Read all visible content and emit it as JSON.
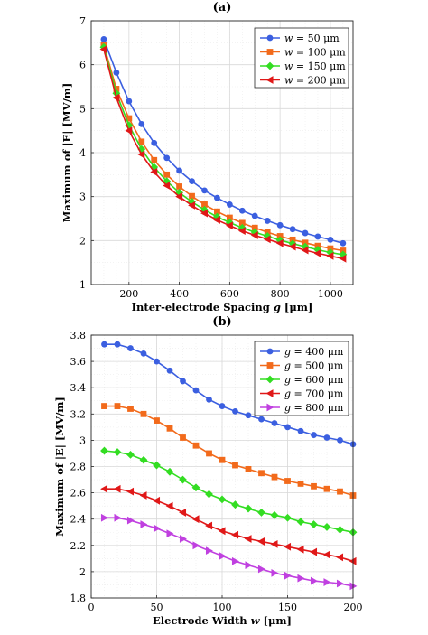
{
  "chart_data": [
    {
      "type": "line",
      "title": "(a)",
      "xlabel": "Inter-electrode Spacing g [μm]",
      "ylabel": "Maximum of |E| [MV/m]",
      "xlim": [
        50,
        1090
      ],
      "ylim": [
        1,
        7
      ],
      "xticks": [
        "200",
        "400",
        "600",
        "800",
        "1000"
      ],
      "yticks": [
        "1",
        "2",
        "3",
        "4",
        "5",
        "6",
        "7"
      ],
      "legend_position": "top-right",
      "x": [
        100,
        150,
        200,
        250,
        300,
        350,
        400,
        450,
        500,
        550,
        600,
        650,
        700,
        750,
        800,
        850,
        900,
        950,
        1000,
        1050
      ],
      "series": [
        {
          "name": "w = 50 μm",
          "color": "#3b5fe0",
          "marker": "circle",
          "values": [
            6.58,
            5.82,
            5.17,
            4.65,
            4.22,
            3.88,
            3.59,
            3.35,
            3.14,
            2.97,
            2.82,
            2.68,
            2.56,
            2.45,
            2.35,
            2.26,
            2.17,
            2.09,
            2.02,
            1.94
          ]
        },
        {
          "name": "w = 100 μm",
          "color": "#f26a1b",
          "marker": "square",
          "values": [
            6.45,
            5.45,
            4.78,
            4.25,
            3.83,
            3.5,
            3.23,
            3.01,
            2.82,
            2.66,
            2.52,
            2.4,
            2.29,
            2.19,
            2.1,
            2.02,
            1.95,
            1.88,
            1.82,
            1.77
          ]
        },
        {
          "name": "w = 150 μm",
          "color": "#33dd22",
          "marker": "diamond",
          "values": [
            6.4,
            5.35,
            4.62,
            4.08,
            3.67,
            3.35,
            3.09,
            2.88,
            2.7,
            2.54,
            2.41,
            2.29,
            2.19,
            2.1,
            2.01,
            1.93,
            1.86,
            1.79,
            1.73,
            1.68
          ]
        },
        {
          "name": "w = 200 μm",
          "color": "#e01818",
          "marker": "triangle-left",
          "values": [
            6.35,
            5.25,
            4.5,
            3.96,
            3.56,
            3.25,
            3.0,
            2.8,
            2.62,
            2.47,
            2.34,
            2.22,
            2.12,
            2.03,
            1.94,
            1.86,
            1.78,
            1.71,
            1.65,
            1.59
          ]
        }
      ]
    },
    {
      "type": "line",
      "title": "(b)",
      "xlabel": "Electrode Width w [μm]",
      "ylabel": "Maximum of |E| [MV/m]",
      "xlim": [
        0,
        200
      ],
      "ylim": [
        1.8,
        3.8
      ],
      "xticks": [
        "0",
        "50",
        "100",
        "150",
        "200"
      ],
      "yticks": [
        "1.8",
        "2",
        "2.2",
        "2.4",
        "2.6",
        "2.8",
        "3",
        "3.2",
        "3.4",
        "3.6",
        "3.8"
      ],
      "legend_position": "top-right",
      "x": [
        10,
        20,
        30,
        40,
        50,
        60,
        70,
        80,
        90,
        100,
        110,
        120,
        130,
        140,
        150,
        160,
        170,
        180,
        190,
        200
      ],
      "series": [
        {
          "name": "g = 400 μm",
          "color": "#3b5fe0",
          "marker": "circle",
          "values": [
            3.73,
            3.73,
            3.7,
            3.66,
            3.6,
            3.53,
            3.45,
            3.38,
            3.31,
            3.26,
            3.22,
            3.19,
            3.16,
            3.13,
            3.1,
            3.07,
            3.04,
            3.02,
            3.0,
            2.97
          ]
        },
        {
          "name": "g = 500 μm",
          "color": "#f26a1b",
          "marker": "square",
          "values": [
            3.26,
            3.26,
            3.24,
            3.2,
            3.15,
            3.09,
            3.02,
            2.96,
            2.9,
            2.85,
            2.81,
            2.78,
            2.75,
            2.72,
            2.69,
            2.67,
            2.65,
            2.63,
            2.61,
            2.58
          ]
        },
        {
          "name": "g = 600 μm",
          "color": "#33dd22",
          "marker": "diamond",
          "values": [
            2.92,
            2.91,
            2.89,
            2.85,
            2.81,
            2.76,
            2.7,
            2.64,
            2.59,
            2.55,
            2.51,
            2.48,
            2.45,
            2.43,
            2.41,
            2.38,
            2.36,
            2.34,
            2.32,
            2.3
          ]
        },
        {
          "name": "g = 700 μm",
          "color": "#e01818",
          "marker": "triangle-left",
          "values": [
            2.63,
            2.63,
            2.61,
            2.58,
            2.54,
            2.5,
            2.45,
            2.4,
            2.35,
            2.31,
            2.28,
            2.25,
            2.23,
            2.21,
            2.19,
            2.17,
            2.15,
            2.13,
            2.11,
            2.08
          ]
        },
        {
          "name": "g = 800 μm",
          "color": "#c040e0",
          "marker": "triangle-right",
          "values": [
            2.41,
            2.41,
            2.39,
            2.36,
            2.33,
            2.29,
            2.25,
            2.2,
            2.16,
            2.12,
            2.08,
            2.05,
            2.02,
            1.99,
            1.97,
            1.95,
            1.93,
            1.92,
            1.91,
            1.89
          ]
        }
      ]
    }
  ]
}
